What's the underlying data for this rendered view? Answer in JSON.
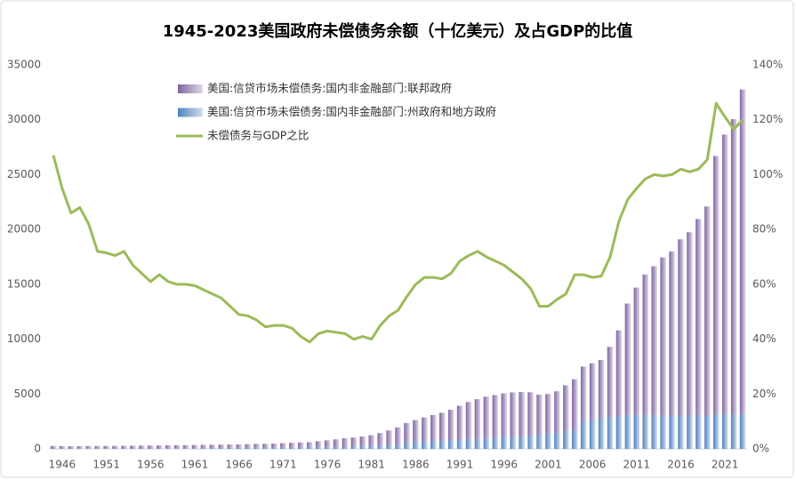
{
  "chart_data": {
    "type": "stacked_bar_line",
    "title": "1945-2023美国政府未偿债务余额（十亿美元）及占GDP的比值",
    "categories": [
      null,
      "1946",
      null,
      null,
      null,
      null,
      "1951",
      null,
      null,
      null,
      null,
      "1956",
      null,
      null,
      null,
      null,
      "1961",
      null,
      null,
      null,
      null,
      "1966",
      null,
      null,
      null,
      null,
      "1971",
      null,
      null,
      null,
      null,
      "1976",
      null,
      null,
      null,
      null,
      "1981",
      null,
      null,
      null,
      null,
      "1986",
      null,
      null,
      null,
      null,
      "1991",
      null,
      null,
      null,
      null,
      "1996",
      null,
      null,
      null,
      null,
      "2001",
      null,
      null,
      null,
      null,
      "2006",
      null,
      null,
      null,
      null,
      "2011",
      null,
      null,
      null,
      null,
      "2016",
      null,
      null,
      null,
      null,
      "2021",
      null,
      null
    ],
    "series": [
      {
        "name": "美国:信贷市场未偿债务:国内非金融部门:州政府和地方政府",
        "color": "#4f81bd",
        "values": [
          14,
          15,
          16,
          18,
          20,
          24,
          26,
          29,
          33,
          37,
          41,
          44,
          48,
          53,
          58,
          62,
          67,
          72,
          78,
          84,
          90,
          96,
          102,
          108,
          116,
          125,
          135,
          145,
          155,
          165,
          175,
          180,
          190,
          200,
          215,
          230,
          250,
          280,
          320,
          380,
          560,
          620,
          680,
          740,
          780,
          820,
          860,
          900,
          950,
          1000,
          1020,
          1050,
          1100,
          1150,
          1200,
          1250,
          1350,
          1450,
          1600,
          1750,
          2600,
          2700,
          2800,
          2900,
          3000,
          3050,
          3100,
          3100,
          3050,
          3050,
          3000,
          3000,
          3050,
          3050,
          3000,
          3100,
          3150,
          3150,
          3150
        ]
      },
      {
        "name": "美国:信贷市场未偿债务:国内非金融部门:联邦政府",
        "color": "#8064a2",
        "values": [
          250,
          240,
          230,
          230,
          235,
          240,
          240,
          245,
          250,
          255,
          260,
          262,
          262,
          270,
          280,
          280,
          285,
          295,
          300,
          305,
          310,
          315,
          325,
          345,
          345,
          360,
          390,
          410,
          430,
          440,
          520,
          600,
          680,
          760,
          820,
          900,
          1000,
          1160,
          1360,
          1580,
          1800,
          2000,
          2180,
          2350,
          2510,
          2750,
          3070,
          3370,
          3580,
          3760,
          3890,
          4010,
          4050,
          4030,
          3960,
          3700,
          3650,
          3800,
          4200,
          4600,
          4900,
          5100,
          5300,
          6400,
          7800,
          10200,
          11600,
          12800,
          13600,
          14400,
          15000,
          16100,
          16700,
          17900,
          19100,
          23600,
          25500,
          26900,
          29600
        ]
      },
      {
        "name": "未偿债务与GDP之比",
        "color": "#9bbb59",
        "axis": "y2",
        "values": [
          107,
          95,
          86,
          88,
          82,
          72,
          71.5,
          70.5,
          72,
          67,
          64,
          61,
          63.5,
          61,
          60,
          60,
          59.5,
          58,
          56.5,
          55,
          52,
          49,
          48.5,
          47,
          44.5,
          45,
          45,
          44,
          41,
          39,
          42,
          43,
          42.5,
          42,
          40,
          41,
          40,
          45,
          48.5,
          50.5,
          55.5,
          60,
          62.5,
          62.5,
          62,
          64,
          68.5,
          70.5,
          72,
          70,
          68.5,
          67,
          64.5,
          62,
          58.5,
          52,
          52,
          54.5,
          56.5,
          63.5,
          63.5,
          62.5,
          63,
          70,
          83,
          91,
          95,
          98.5,
          100,
          99.5,
          100,
          102,
          101,
          102,
          105.5,
          126,
          121,
          116.5,
          120
        ]
      }
    ],
    "ylim": [
      0,
      35000
    ],
    "yticks": [
      0,
      5000,
      10000,
      15000,
      20000,
      25000,
      30000,
      35000
    ],
    "y2lim": [
      0,
      140
    ],
    "y2ticks": [
      {
        "value": 0,
        "label": "0%"
      },
      {
        "value": 20,
        "label": "20%"
      },
      {
        "value": 40,
        "label": "40%"
      },
      {
        "value": 60,
        "label": "60%"
      },
      {
        "value": 80,
        "label": "80%"
      },
      {
        "value": 100,
        "label": "100%"
      },
      {
        "value": 120,
        "label": "120%"
      },
      {
        "value": 140,
        "label": "140%"
      }
    ],
    "grid": false
  }
}
